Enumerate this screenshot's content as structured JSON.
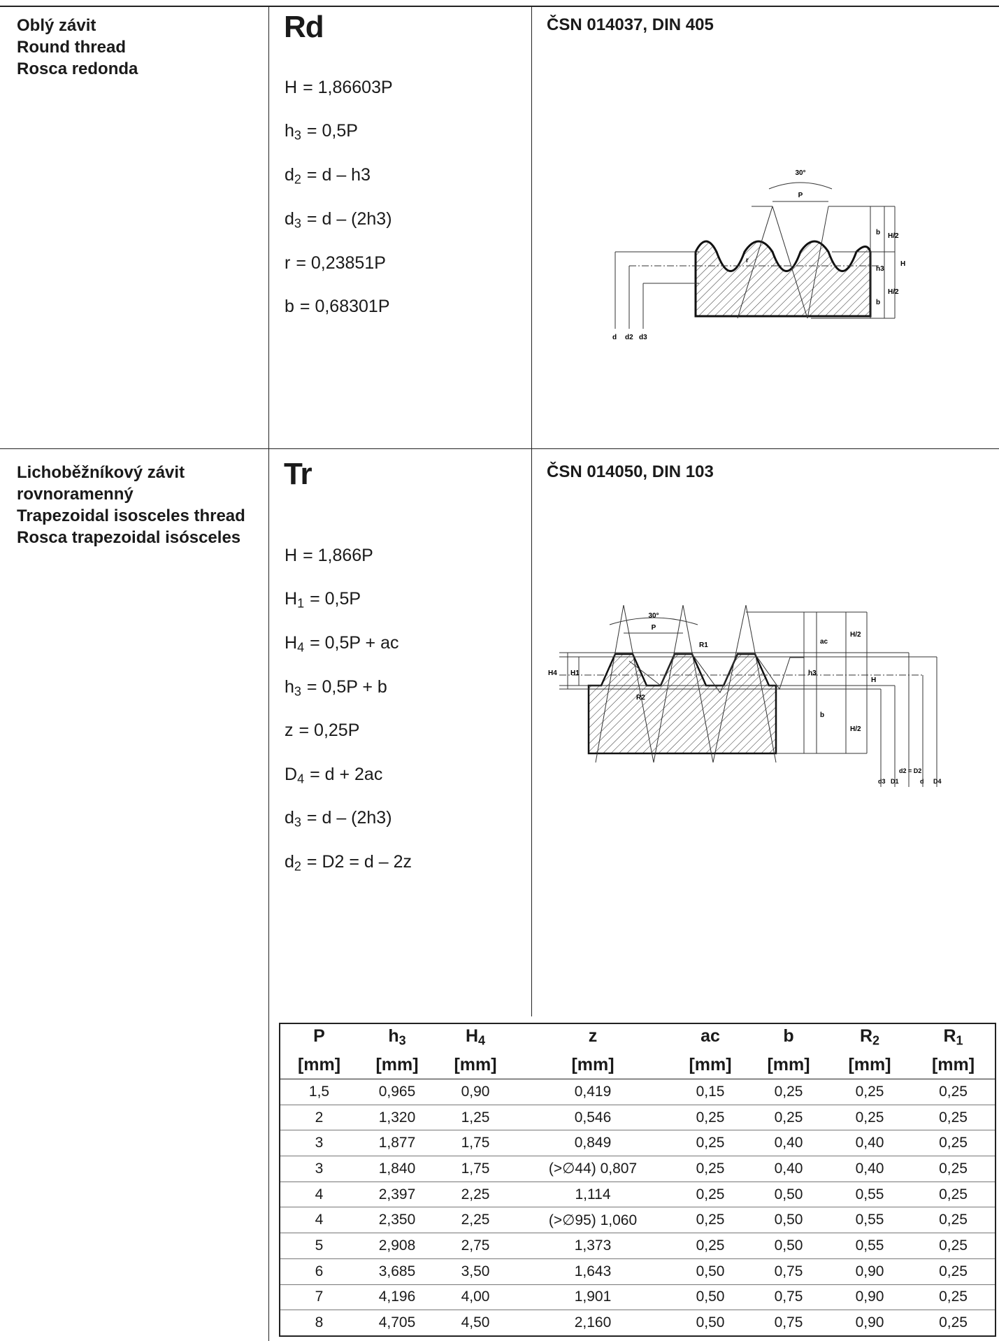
{
  "sections": [
    {
      "names": [
        "Oblý závit",
        "Round thread",
        "Rosca redonda"
      ],
      "code": "Rd",
      "standard": "ČSN 014037, DIN 405",
      "formulas": [
        {
          "sym": "H",
          "sub": "",
          "expr": "= 1,86603P"
        },
        {
          "sym": "h",
          "sub": "3",
          "expr": "= 0,5P"
        },
        {
          "sym": "d",
          "sub": "2",
          "expr": "= d – h3"
        },
        {
          "sym": "d",
          "sub": "3",
          "expr": "= d – (2h3)"
        },
        {
          "sym": "r",
          "sub": "",
          "expr": "= 0,23851P"
        },
        {
          "sym": "b",
          "sub": "",
          "expr": "= 0,68301P"
        }
      ],
      "diagram_labels": {
        "angle": "30°",
        "pitch": "P",
        "b": "b",
        "h3": "h3",
        "H": "H",
        "H2": "H/2",
        "r": "r",
        "d": "d",
        "d2": "d2",
        "d3": "d3"
      }
    },
    {
      "names": [
        "Lichoběžníkový závit",
        "rovnoramenný",
        "Trapezoidal isosceles thread",
        "Rosca trapezoidal isósceles"
      ],
      "code": "Tr",
      "standard": "ČSN 014050, DIN 103",
      "formulas": [
        {
          "sym": "H",
          "sub": "",
          "expr": "= 1,866P"
        },
        {
          "sym": "H",
          "sub": "1",
          "expr": "= 0,5P"
        },
        {
          "sym": "H",
          "sub": "4",
          "expr": "= 0,5P + ac"
        },
        {
          "sym": "h",
          "sub": "3",
          "expr": "= 0,5P + b"
        },
        {
          "sym": "z",
          "sub": "",
          "expr": "= 0,25P"
        },
        {
          "sym": "D",
          "sub": "4",
          "expr": "= d + 2ac"
        },
        {
          "sym": "d",
          "sub": "3",
          "expr": "= d – (2h3)"
        },
        {
          "sym": "d",
          "sub": "2",
          "expr": "= D2 = d – 2z"
        }
      ],
      "diagram_labels": {
        "angle": "30°",
        "pitch": "P",
        "ac": "ac",
        "H2": "H/2",
        "h3": "h3",
        "H": "H",
        "b": "b",
        "H4": "H4",
        "H1": "H1",
        "R1": "R1",
        "R2": "R2",
        "d3": "d3",
        "D1": "D1",
        "d2D2": "d2 = D2",
        "d": "d",
        "D4": "D4"
      }
    }
  ],
  "table": {
    "headers": [
      {
        "sym": "P",
        "sub": "",
        "unit": "[mm]"
      },
      {
        "sym": "h",
        "sub": "3",
        "unit": "[mm]"
      },
      {
        "sym": "H",
        "sub": "4",
        "unit": "[mm]"
      },
      {
        "sym": "z",
        "sub": "",
        "unit": "[mm]"
      },
      {
        "sym": "ac",
        "sub": "",
        "unit": "[mm]"
      },
      {
        "sym": "b",
        "sub": "",
        "unit": "[mm]"
      },
      {
        "sym": "R",
        "sub": "2",
        "unit": "[mm]"
      },
      {
        "sym": "R",
        "sub": "1",
        "unit": "[mm]"
      }
    ],
    "rows": [
      [
        "1,5",
        "0,965",
        "0,90",
        "0,419",
        "0,15",
        "0,25",
        "0,25",
        "0,25"
      ],
      [
        "2",
        "1,320",
        "1,25",
        "0,546",
        "0,25",
        "0,25",
        "0,25",
        "0,25"
      ],
      [
        "3",
        "1,877",
        "1,75",
        "0,849",
        "0,25",
        "0,40",
        "0,40",
        "0,25"
      ],
      [
        "3",
        "1,840",
        "1,75",
        "(>∅44) 0,807",
        "0,25",
        "0,40",
        "0,40",
        "0,25"
      ],
      [
        "4",
        "2,397",
        "2,25",
        "1,114",
        "0,25",
        "0,50",
        "0,55",
        "0,25"
      ],
      [
        "4",
        "2,350",
        "2,25",
        "(>∅95) 1,060",
        "0,25",
        "0,50",
        "0,55",
        "0,25"
      ],
      [
        "5",
        "2,908",
        "2,75",
        "1,373",
        "0,25",
        "0,50",
        "0,55",
        "0,25"
      ],
      [
        "6",
        "3,685",
        "3,50",
        "1,643",
        "0,50",
        "0,75",
        "0,90",
        "0,25"
      ],
      [
        "7",
        "4,196",
        "4,00",
        "1,901",
        "0,50",
        "0,75",
        "0,90",
        "0,25"
      ],
      [
        "8",
        "4,705",
        "4,50",
        "2,160",
        "0,50",
        "0,75",
        "0,90",
        "0,25"
      ]
    ]
  }
}
